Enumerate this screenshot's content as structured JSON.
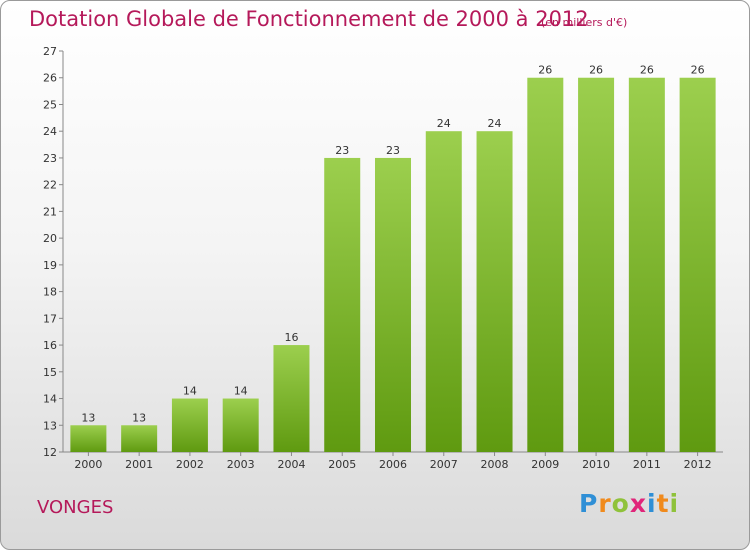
{
  "title": "Dotation Globale de Fonctionnement de 2000 à 2012",
  "unit": "(en milliers d'€)",
  "location": "VONGES",
  "logo": {
    "letters": [
      {
        "ch": "P",
        "color": "#2f8fd6"
      },
      {
        "ch": "r",
        "color": "#f08a1c"
      },
      {
        "ch": "o",
        "color": "#8fc23a"
      },
      {
        "ch": "x",
        "color": "#e0257a"
      },
      {
        "ch": "i",
        "color": "#2f8fd6"
      },
      {
        "ch": "t",
        "color": "#f08a1c"
      },
      {
        "ch": "i",
        "color": "#8fc23a"
      }
    ]
  },
  "colors": {
    "bar_top": "#9ccf4e",
    "bar_bottom": "#5f9a10",
    "axis": "#888888"
  },
  "chart_data": {
    "type": "bar",
    "categories": [
      "2000",
      "2001",
      "2002",
      "2003",
      "2004",
      "2005",
      "2006",
      "2007",
      "2008",
      "2009",
      "2010",
      "2011",
      "2012"
    ],
    "values": [
      13,
      13,
      14,
      14,
      16,
      23,
      23,
      24,
      24,
      26,
      26,
      26,
      26
    ],
    "ylim": [
      12,
      27
    ],
    "yticks": [
      12,
      13,
      14,
      15,
      16,
      17,
      18,
      19,
      20,
      21,
      22,
      23,
      24,
      25,
      26,
      27
    ],
    "grid": false,
    "legend": "none"
  }
}
